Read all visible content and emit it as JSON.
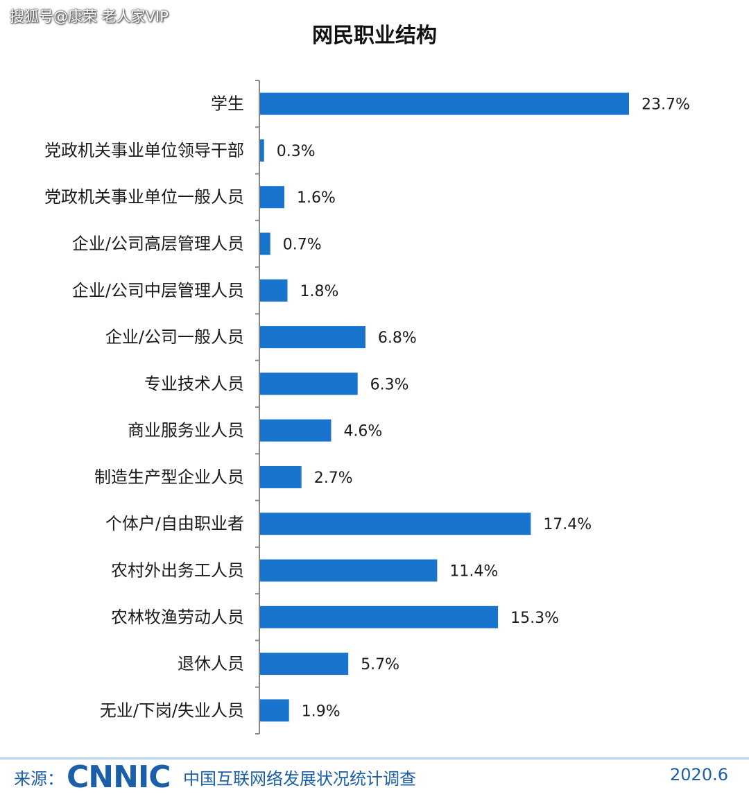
{
  "watermark": "搜狐号@康荣 老人家VIP",
  "footer": {
    "source_label": "来源：",
    "logo": "CNNIC",
    "survey_name": "中国互联网络发展状况统计调查",
    "date": "2020.6"
  },
  "colors": {
    "bar": "#1874cd",
    "axis": "#888888",
    "text": "#1a1a1a"
  },
  "chart_data": {
    "type": "bar",
    "orientation": "horizontal",
    "title": "网民职业结构",
    "xlabel": "",
    "ylabel": "",
    "unit": "%",
    "xlim": [
      0,
      25
    ],
    "grid": false,
    "legend": "none",
    "categories": [
      "学生",
      "党政机关事业单位领导干部",
      "党政机关事业单位一般人员",
      "企业/公司高层管理人员",
      "企业/公司中层管理人员",
      "企业/公司一般人员",
      "专业技术人员",
      "商业服务业人员",
      "制造生产型企业人员",
      "个体户/自由职业者",
      "农村外出务工人员",
      "农林牧渔劳动人员",
      "退休人员",
      "无业/下岗/失业人员"
    ],
    "values": [
      23.7,
      0.3,
      1.6,
      0.7,
      1.8,
      6.8,
      6.3,
      4.6,
      2.7,
      17.4,
      11.4,
      15.3,
      5.7,
      1.9
    ],
    "value_labels": [
      "23.7%",
      "0.3%",
      "1.6%",
      "0.7%",
      "1.8%",
      "6.8%",
      "6.3%",
      "4.6%",
      "2.7%",
      "17.4%",
      "11.4%",
      "15.3%",
      "5.7%",
      "1.9%"
    ]
  }
}
